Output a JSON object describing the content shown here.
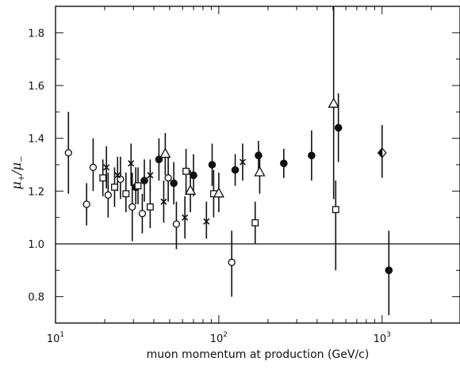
{
  "chart_data": {
    "type": "scatter",
    "title": "",
    "xlabel": "muon momentum at production (GeV/c)",
    "ylabel": {
      "mu1": "μ",
      "sub1": "+",
      "slash": "/",
      "mu2": "μ",
      "sub2": "−"
    },
    "x_scale": "log",
    "xlim": [
      10,
      3000
    ],
    "ylim": [
      0.7,
      1.9
    ],
    "grid": false,
    "legend": "none",
    "reference_line": 1.0,
    "x_ticks": [
      {
        "value": 10,
        "base": "10",
        "exp": "1"
      },
      {
        "value": 100,
        "base": "10",
        "exp": "2"
      },
      {
        "value": 1000,
        "base": "10",
        "exp": "3"
      }
    ],
    "y_ticks": [
      {
        "value": 0.8,
        "label": "0.8"
      },
      {
        "value": 1.0,
        "label": "1.0"
      },
      {
        "value": 1.2,
        "label": "1.2"
      },
      {
        "value": 1.4,
        "label": "1.4"
      },
      {
        "value": 1.6,
        "label": "1.6"
      },
      {
        "value": 1.8,
        "label": "1.8"
      }
    ],
    "series": [
      {
        "marker": "open-circle",
        "points": [
          {
            "x": 12,
            "y": 1.345,
            "lo": 1.19,
            "hi": 1.5
          },
          {
            "x": 15.5,
            "y": 1.15,
            "lo": 1.07,
            "hi": 1.23
          },
          {
            "x": 17,
            "y": 1.29,
            "lo": 1.2,
            "hi": 1.4
          },
          {
            "x": 21,
            "y": 1.185,
            "lo": 1.1,
            "hi": 1.27
          },
          {
            "x": 25,
            "y": 1.245,
            "lo": 1.17,
            "hi": 1.33
          },
          {
            "x": 29.5,
            "y": 1.14,
            "lo": 1.01,
            "hi": 1.27
          },
          {
            "x": 34,
            "y": 1.115,
            "lo": 1.04,
            "hi": 1.19
          },
          {
            "x": 49,
            "y": 1.25,
            "lo": 1.16,
            "hi": 1.33
          },
          {
            "x": 55,
            "y": 1.075,
            "lo": 0.98,
            "hi": 1.16
          },
          {
            "x": 120,
            "y": 0.93,
            "lo": 0.8,
            "hi": 1.05
          }
        ]
      },
      {
        "marker": "filled-circle",
        "points": [
          {
            "x": 31,
            "y": 1.215,
            "lo": 1.15,
            "hi": 1.29
          },
          {
            "x": 35,
            "y": 1.24,
            "lo": 1.16,
            "hi": 1.32
          },
          {
            "x": 43,
            "y": 1.32,
            "lo": 1.24,
            "hi": 1.4
          },
          {
            "x": 53,
            "y": 1.23,
            "lo": 1.15,
            "hi": 1.31
          },
          {
            "x": 70,
            "y": 1.26,
            "lo": 1.18,
            "hi": 1.34
          },
          {
            "x": 91,
            "y": 1.3,
            "lo": 1.22,
            "hi": 1.38
          },
          {
            "x": 126,
            "y": 1.28,
            "lo": 1.22,
            "hi": 1.34
          },
          {
            "x": 175,
            "y": 1.335,
            "lo": 1.28,
            "hi": 1.39
          },
          {
            "x": 250,
            "y": 1.305,
            "lo": 1.25,
            "hi": 1.36
          },
          {
            "x": 370,
            "y": 1.335,
            "lo": 1.24,
            "hi": 1.43
          },
          {
            "x": 540,
            "y": 1.44,
            "lo": 1.31,
            "hi": 1.57
          },
          {
            "x": 1100,
            "y": 0.9,
            "lo": 0.73,
            "hi": 1.05
          }
        ]
      },
      {
        "marker": "open-square",
        "points": [
          {
            "x": 19.5,
            "y": 1.25,
            "lo": 1.18,
            "hi": 1.32
          },
          {
            "x": 23,
            "y": 1.215,
            "lo": 1.14,
            "hi": 1.29
          },
          {
            "x": 27,
            "y": 1.19,
            "lo": 1.12,
            "hi": 1.27
          },
          {
            "x": 32,
            "y": 1.22,
            "lo": 1.15,
            "hi": 1.29
          },
          {
            "x": 38,
            "y": 1.14,
            "lo": 1.06,
            "hi": 1.22
          },
          {
            "x": 63,
            "y": 1.275,
            "lo": 1.19,
            "hi": 1.36
          },
          {
            "x": 93,
            "y": 1.19,
            "lo": 1.1,
            "hi": 1.28
          },
          {
            "x": 167,
            "y": 1.08,
            "lo": 1.0,
            "hi": 1.16
          },
          {
            "x": 520,
            "y": 1.13,
            "lo": 0.9,
            "hi": 1.24
          }
        ]
      },
      {
        "marker": "open-triangle",
        "points": [
          {
            "x": 47,
            "y": 1.34,
            "lo": 1.26,
            "hi": 1.42
          },
          {
            "x": 67,
            "y": 1.2,
            "lo": 1.12,
            "hi": 1.28
          },
          {
            "x": 100,
            "y": 1.19,
            "lo": 1.12,
            "hi": 1.27
          },
          {
            "x": 178,
            "y": 1.27,
            "lo": 1.19,
            "hi": 1.35
          },
          {
            "x": 505,
            "y": 1.53,
            "lo": 1.17,
            "hi": 1.9
          }
        ]
      },
      {
        "marker": "cross",
        "points": [
          {
            "x": 20.5,
            "y": 1.29,
            "lo": 1.21,
            "hi": 1.37
          },
          {
            "x": 24,
            "y": 1.26,
            "lo": 1.2,
            "hi": 1.33
          },
          {
            "x": 29,
            "y": 1.305,
            "lo": 1.22,
            "hi": 1.38
          },
          {
            "x": 38,
            "y": 1.26,
            "lo": 1.2,
            "hi": 1.32
          },
          {
            "x": 46,
            "y": 1.16,
            "lo": 1.08,
            "hi": 1.24
          },
          {
            "x": 62,
            "y": 1.1,
            "lo": 1.02,
            "hi": 1.18
          },
          {
            "x": 84,
            "y": 1.085,
            "lo": 1.02,
            "hi": 1.16
          },
          {
            "x": 140,
            "y": 1.31,
            "lo": 1.24,
            "hi": 1.38
          }
        ]
      },
      {
        "marker": "half-filled-diamond",
        "points": [
          {
            "x": 1000,
            "y": 1.345,
            "lo": 1.25,
            "hi": 1.45
          }
        ]
      }
    ]
  }
}
